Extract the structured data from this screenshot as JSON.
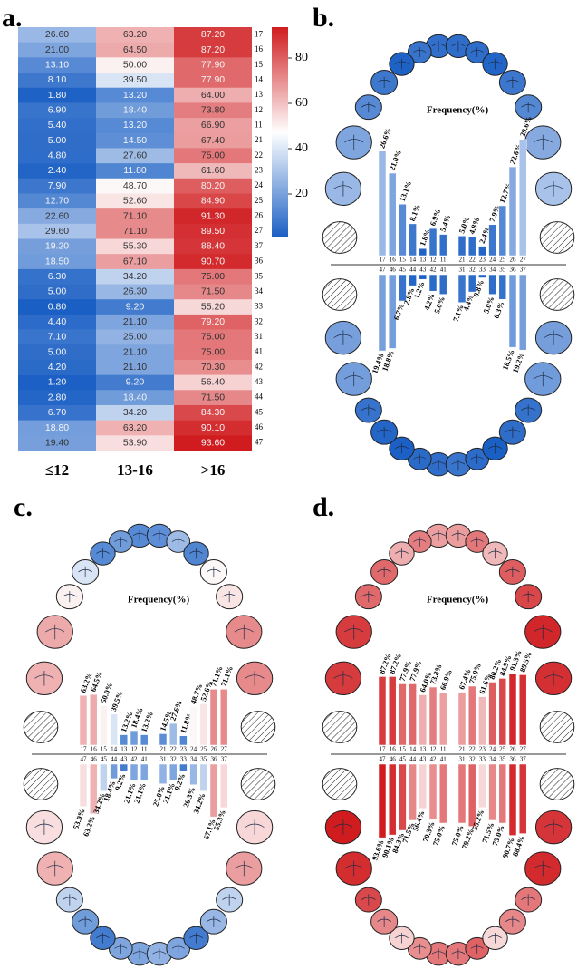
{
  "chart_data": [
    {
      "type": "heatmap",
      "label": "a.",
      "x": [
        "≤12",
        "13-16",
        ">16"
      ],
      "y": [
        "17",
        "16",
        "15",
        "14",
        "13",
        "12",
        "11",
        "21",
        "22",
        "23",
        "24",
        "25",
        "26",
        "27",
        "37",
        "36",
        "35",
        "34",
        "33",
        "32",
        "31",
        "41",
        "42",
        "43",
        "44",
        "45",
        "46",
        "47"
      ],
      "values": [
        [
          26.6,
          63.2,
          87.2
        ],
        [
          21.0,
          64.5,
          87.2
        ],
        [
          13.1,
          50.0,
          77.9
        ],
        [
          8.1,
          39.5,
          77.9
        ],
        [
          1.8,
          13.2,
          64.0
        ],
        [
          6.9,
          18.4,
          73.8
        ],
        [
          5.4,
          13.2,
          66.9
        ],
        [
          5.0,
          14.5,
          67.4
        ],
        [
          4.8,
          27.6,
          75.0
        ],
        [
          2.4,
          11.8,
          61.6
        ],
        [
          7.9,
          48.7,
          80.2
        ],
        [
          12.7,
          52.6,
          84.9
        ],
        [
          22.6,
          71.1,
          91.3
        ],
        [
          29.6,
          71.1,
          89.5
        ],
        [
          19.2,
          55.3,
          88.4
        ],
        [
          18.5,
          67.1,
          90.7
        ],
        [
          6.3,
          34.2,
          75.0
        ],
        [
          5.0,
          26.3,
          71.5
        ],
        [
          0.8,
          9.2,
          55.2
        ],
        [
          4.4,
          21.1,
          79.2
        ],
        [
          7.1,
          25.0,
          75.0
        ],
        [
          5.0,
          21.1,
          75.0
        ],
        [
          4.2,
          21.1,
          70.3
        ],
        [
          1.2,
          9.2,
          56.4
        ],
        [
          2.8,
          18.4,
          71.5
        ],
        [
          6.7,
          34.2,
          84.3
        ],
        [
          18.8,
          63.2,
          90.1
        ],
        [
          19.4,
          53.9,
          93.6
        ]
      ],
      "value_labels": [
        [
          "26.60",
          "63.20",
          "87.20"
        ],
        [
          "21.00",
          "64.50",
          "87.20"
        ],
        [
          "13.10",
          "50.00",
          "77.90"
        ],
        [
          "8.10",
          "39.50",
          "77.90"
        ],
        [
          "1.80",
          "13.20",
          "64.00"
        ],
        [
          "6.90",
          "18.40",
          "73.80"
        ],
        [
          "5.40",
          "13.20",
          "66.90"
        ],
        [
          "5.00",
          "14.50",
          "67.40"
        ],
        [
          "4.80",
          "27.60",
          "75.00"
        ],
        [
          "2.40",
          "11.80",
          "61.60"
        ],
        [
          "7.90",
          "48.70",
          "80.20"
        ],
        [
          "12.70",
          "52.60",
          "84.90"
        ],
        [
          "22.60",
          "71.10",
          "91.30"
        ],
        [
          "29.60",
          "71.10",
          "89.50"
        ],
        [
          "19.20",
          "55.30",
          "88.40"
        ],
        [
          "18.50",
          "67.10",
          "90.70"
        ],
        [
          "6.30",
          "34.20",
          "75.00"
        ],
        [
          "5.00",
          "26.30",
          "71.50"
        ],
        [
          "0.80",
          "9.20",
          "55.20"
        ],
        [
          "4.40",
          "21.10",
          "79.20"
        ],
        [
          "7.10",
          "25.00",
          "75.00"
        ],
        [
          "5.00",
          "21.10",
          "75.00"
        ],
        [
          "4.20",
          "21.10",
          "70.30"
        ],
        [
          "1.20",
          "9.20",
          "56.40"
        ],
        [
          "2.80",
          "18.40",
          "71.50"
        ],
        [
          "6.70",
          "34.20",
          "84.30"
        ],
        [
          "18.80",
          "63.20",
          "90.10"
        ],
        [
          "19.40",
          "53.90",
          "93.60"
        ]
      ],
      "colormap": [
        "#1a5fc4",
        "#ffffff",
        "#d01c1f"
      ],
      "clim": [
        0.8,
        93.6
      ],
      "cticks": [
        20,
        40,
        60,
        80
      ]
    },
    {
      "type": "dental",
      "label": "b.",
      "title": "Frequency(%)",
      "ylim": [
        0,
        30
      ],
      "upper": {
        "categories": [
          "17",
          "16",
          "15",
          "14",
          "13",
          "12",
          "11",
          "21",
          "22",
          "23",
          "24",
          "25",
          "26",
          "27"
        ],
        "values": [
          26.6,
          21.0,
          13.1,
          8.1,
          1.8,
          6.9,
          5.4,
          5.0,
          4.8,
          2.4,
          7.9,
          12.7,
          22.6,
          29.6
        ],
        "value_labels": [
          "26.6%",
          "21.0%",
          "13.1%",
          "8.1%",
          "1.8%",
          "6.9%",
          "5.4%",
          "5.0%",
          "4.8%",
          "2.4%",
          "7.9%",
          "12.7%",
          "22.6%",
          "29.6%"
        ]
      },
      "lower": {
        "categories": [
          "47",
          "46",
          "45",
          "44",
          "43",
          "42",
          "41",
          "31",
          "32",
          "33",
          "34",
          "35",
          "36",
          "37"
        ],
        "values": [
          19.4,
          18.8,
          6.7,
          2.8,
          1.2,
          4.2,
          5.0,
          7.1,
          4.4,
          0.8,
          5.0,
          6.3,
          18.5,
          19.2
        ],
        "value_labels": [
          "19.4%",
          "18.8%",
          "6.7%",
          "2.8%",
          "1.2%",
          "4.2%",
          "5.0%",
          "7.1%",
          "4.4%",
          "0.8%",
          "5.0%",
          "6.3%",
          "18.5%",
          "19.2%"
        ]
      }
    },
    {
      "type": "dental",
      "label": "c.",
      "title": "Frequency(%)",
      "ylim": [
        0,
        150
      ],
      "upper": {
        "categories": [
          "17",
          "16",
          "15",
          "14",
          "13",
          "12",
          "11",
          "21",
          "22",
          "23",
          "24",
          "25",
          "26",
          "27"
        ],
        "values": [
          63.2,
          64.5,
          50.0,
          39.5,
          13.2,
          18.4,
          13.2,
          14.5,
          27.6,
          11.8,
          48.7,
          52.6,
          71.1,
          71.1
        ],
        "value_labels": [
          "63.2%",
          "64.5%",
          "50.0%",
          "39.5%",
          "13.2%",
          "18.4%",
          "13.2%",
          "14.5%",
          "27.6%",
          "11.8%",
          "48.7%",
          "52.6%",
          "71.1%",
          "71.1%"
        ]
      },
      "lower": {
        "categories": [
          "47",
          "46",
          "45",
          "44",
          "43",
          "42",
          "41",
          "31",
          "32",
          "33",
          "34",
          "35",
          "36",
          "37"
        ],
        "values": [
          53.9,
          63.2,
          34.2,
          18.4,
          9.2,
          21.1,
          21.1,
          25.0,
          21.1,
          9.2,
          26.3,
          34.2,
          67.1,
          55.3
        ],
        "value_labels": [
          "53.9%",
          "63.2%",
          "34.2%",
          "18.4%",
          "9.2%",
          "21.1%",
          "21.1%",
          "25.0%",
          "21.1%",
          "9.2%",
          "26.3%",
          "34.2%",
          "67.1%",
          "55.3%"
        ]
      }
    },
    {
      "type": "dental",
      "label": "d.",
      "title": "Frequency(%)",
      "ylim": [
        0,
        150
      ],
      "upper": {
        "categories": [
          "17",
          "16",
          "15",
          "14",
          "13",
          "12",
          "11",
          "21",
          "22",
          "23",
          "24",
          "25",
          "26",
          "27"
        ],
        "values": [
          87.2,
          87.2,
          77.9,
          77.9,
          64.0,
          73.8,
          66.9,
          67.4,
          75.0,
          61.6,
          80.2,
          84.9,
          91.3,
          89.5
        ],
        "value_labels": [
          "87.2%",
          "87.2%",
          "77.9%",
          "77.9%",
          "64.0%",
          "73.8%",
          "66.9%",
          "67.4%",
          "75.0%",
          "61.6%",
          "80.2%",
          "84.9%",
          "91.3%",
          "89.5%"
        ]
      },
      "lower": {
        "categories": [
          "47",
          "46",
          "45",
          "44",
          "43",
          "42",
          "41",
          "31",
          "32",
          "33",
          "34",
          "35",
          "36",
          "37"
        ],
        "values": [
          93.6,
          90.1,
          84.3,
          71.5,
          56.4,
          70.3,
          75.0,
          75.0,
          79.2,
          55.2,
          71.5,
          75.0,
          90.7,
          88.4
        ],
        "value_labels": [
          "93.6%",
          "90.1%",
          "84.3%",
          "71.5%",
          "56.4%",
          "70.3%",
          "75.0%",
          "75.0%",
          "79.2%",
          "55.2%",
          "71.5%",
          "75.0%",
          "90.7%",
          "88.4%"
        ]
      }
    }
  ]
}
